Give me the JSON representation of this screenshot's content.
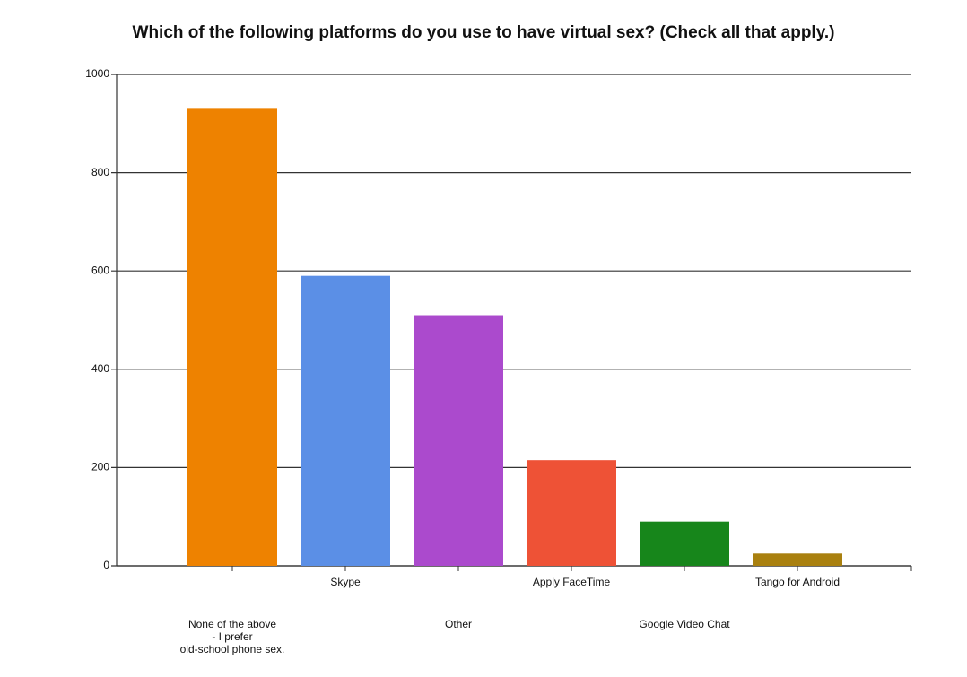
{
  "chart_data": {
    "type": "bar",
    "title": "Which of the following platforms do you use to have virtual sex? (Check all that apply.)",
    "categories": [
      "None of the above\n- I prefer\nold-school phone sex.",
      "Skype",
      "Other",
      "Apply FaceTime",
      "Google Video Chat",
      "Tango for Android"
    ],
    "values": [
      930,
      590,
      510,
      215,
      90,
      25
    ],
    "colors": [
      "#ee8200",
      "#5b8fe6",
      "#ab4acd",
      "#ee5236",
      "#17861b",
      "#a9800f"
    ],
    "ylim": [
      0,
      1000
    ],
    "yticks": [
      0,
      200,
      400,
      600,
      800,
      1000
    ],
    "grid": true
  }
}
